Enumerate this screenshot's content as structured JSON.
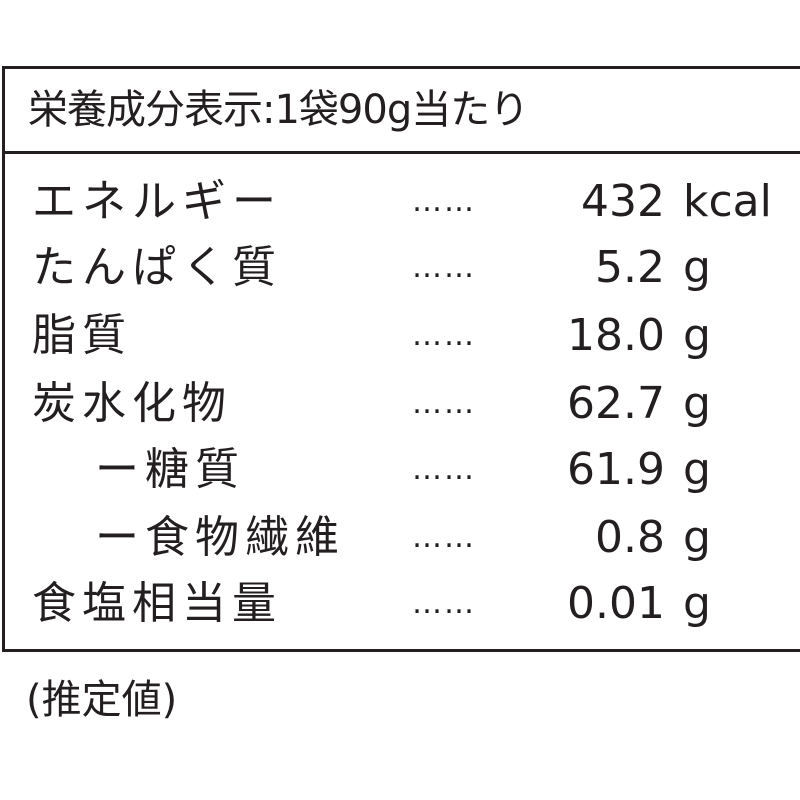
{
  "title": "栄養成分表示:1袋90g当たり",
  "rows": [
    {
      "label": "エネルギー",
      "indent": false,
      "value": "432",
      "unit": "kcal"
    },
    {
      "label": "たんぱく質",
      "indent": false,
      "value": "5.2",
      "unit": "g"
    },
    {
      "label": "脂質",
      "indent": false,
      "value": "18.0",
      "unit": "g"
    },
    {
      "label": "炭水化物",
      "indent": false,
      "value": "62.7",
      "unit": "g"
    },
    {
      "label": "ー糖質",
      "indent": true,
      "value": "61.9",
      "unit": "g"
    },
    {
      "label": "ー食物繊維",
      "indent": true,
      "value": "0.8",
      "unit": "g"
    },
    {
      "label": "食塩相当量",
      "indent": false,
      "value": "0.01",
      "unit": "g"
    }
  ],
  "leader": "……",
  "footer": "(推定値)",
  "colors": {
    "text": "#231f20",
    "border": "#231f20",
    "background": "#ffffff"
  }
}
